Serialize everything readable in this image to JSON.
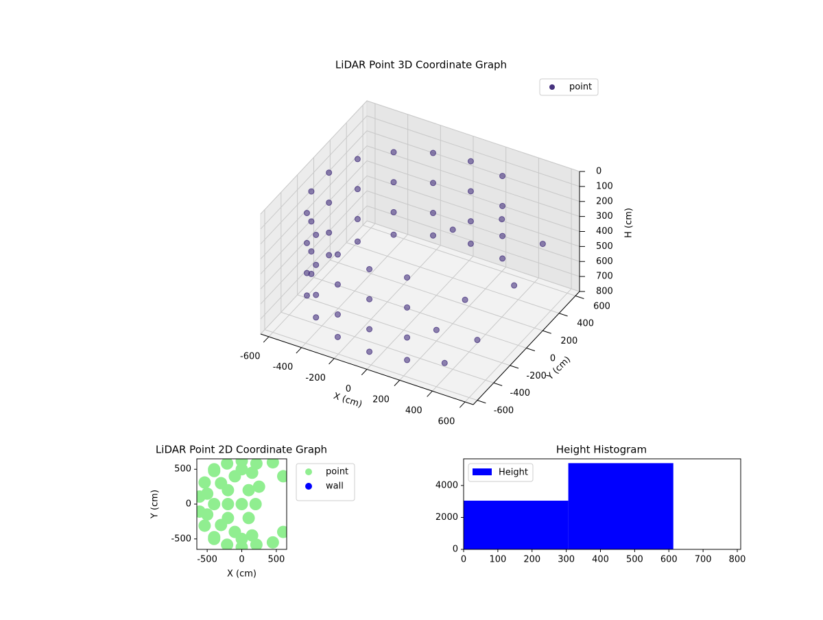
{
  "chart_data": [
    {
      "type": "scatter3d",
      "title": "LiDAR Point 3D Coordinate Graph",
      "xlabel": "X (cm)",
      "ylabel": "Y (cm)",
      "zlabel": "H (cm)",
      "xlim": [
        -650,
        650
      ],
      "ylim": [
        -650,
        650
      ],
      "zlim": [
        0,
        800
      ],
      "zinverted": true,
      "xticks": [
        -600,
        -400,
        -200,
        0,
        200,
        400,
        600
      ],
      "yticks": [
        -600,
        -400,
        -200,
        0,
        200,
        400,
        600
      ],
      "zticks": [
        0,
        100,
        200,
        300,
        400,
        500,
        600,
        700,
        800
      ],
      "legend": "upper right",
      "grid": true,
      "series": [
        {
          "name": "point",
          "color": "#46327e",
          "x": [
            212,
            0,
            -212,
            -399,
            -537,
            -611,
            -611,
            -537,
            -399,
            -212,
            0,
            212,
            212,
            0,
            -212,
            -399,
            -537,
            -611,
            -611,
            -537,
            -399,
            -212,
            0,
            212,
            212,
            0,
            -212,
            -399,
            -537,
            -611,
            -611,
            -537,
            -399,
            -212,
            0,
            212,
            212,
            0,
            -212,
            -399,
            -537,
            -611,
            -611,
            -537,
            -399,
            -212,
            0,
            212,
            300,
            450,
            500,
            250,
            400,
            150,
            350,
            550
          ],
          "y": [
            583,
            620,
            583,
            475,
            310,
            108,
            -108,
            -310,
            -475,
            -583,
            -620,
            -583,
            583,
            620,
            583,
            475,
            310,
            108,
            -108,
            -310,
            -475,
            -583,
            -620,
            -583,
            583,
            620,
            583,
            475,
            310,
            108,
            -108,
            -310,
            -475,
            -583,
            -620,
            -583,
            583,
            620,
            583,
            475,
            310,
            108,
            -108,
            -310,
            -475,
            -583,
            -620,
            -583,
            400,
            250,
            500,
            -300,
            -500,
            100,
            -150,
            -400
          ],
          "z": [
            150,
            150,
            150,
            150,
            150,
            150,
            150,
            150,
            150,
            150,
            150,
            150,
            350,
            350,
            350,
            350,
            350,
            350,
            350,
            350,
            350,
            350,
            350,
            350,
            550,
            550,
            550,
            550,
            550,
            550,
            550,
            550,
            550,
            550,
            550,
            550,
            700,
            700,
            700,
            700,
            700,
            700,
            700,
            700,
            700,
            700,
            700,
            700,
            300,
            600,
            450,
            650,
            700,
            250,
            500,
            550
          ]
        }
      ]
    },
    {
      "type": "scatter",
      "title": "LiDAR Point 2D Coordinate Graph",
      "xlabel": "X (cm)",
      "ylabel": "Y (cm)",
      "xlim": [
        -650,
        650
      ],
      "ylim": [
        -650,
        650
      ],
      "xticks": [
        -500,
        0,
        500
      ],
      "yticks": [
        -500,
        0,
        500
      ],
      "legend": "right",
      "grid": false,
      "series": [
        {
          "name": "point",
          "color": "#90ee90",
          "x": [
            212,
            0,
            -212,
            -399,
            -537,
            -611,
            -611,
            -537,
            -399,
            -212,
            0,
            212,
            -400,
            -200,
            0,
            -300,
            -300,
            -100,
            -100,
            100,
            100,
            200,
            -500,
            -500,
            0,
            0,
            150,
            150,
            -400,
            -400,
            -200,
            -200,
            250,
            450,
            600,
            600,
            450
          ],
          "y": [
            583,
            620,
            583,
            475,
            310,
            108,
            -108,
            -310,
            -475,
            -583,
            -620,
            -583,
            0,
            0,
            0,
            300,
            -300,
            400,
            -400,
            200,
            -200,
            0,
            150,
            -150,
            500,
            -500,
            450,
            -450,
            500,
            -500,
            200,
            -200,
            250,
            600,
            400,
            -400,
            -550
          ]
        },
        {
          "name": "wall",
          "color": "#0000ff",
          "x": [],
          "y": []
        }
      ]
    },
    {
      "type": "histogram",
      "title": "Height Histogram",
      "bins": [
        0,
        306,
        613,
        810
      ],
      "values": [
        3050,
        5400,
        0
      ],
      "name": "Height",
      "color": "#0000ff",
      "xlim": [
        0,
        810
      ],
      "ylim": [
        0,
        5670
      ],
      "xticks": [
        0,
        100,
        200,
        300,
        400,
        500,
        600,
        700,
        800
      ],
      "yticks": [
        0,
        2000,
        4000
      ],
      "legend": "upper left",
      "grid": false
    }
  ]
}
